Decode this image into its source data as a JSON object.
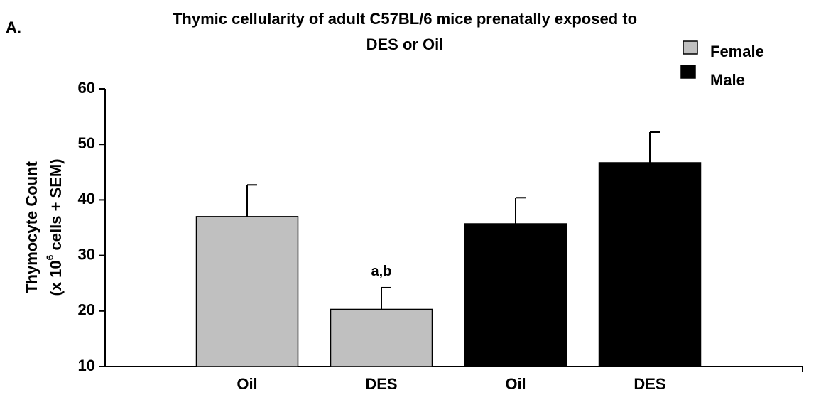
{
  "chart_data": {
    "type": "bar",
    "panel_label": "A.",
    "title": [
      "Thymic cellularity of adult C57BL/6 mice prenatally exposed to",
      "DES or Oil"
    ],
    "y_label": {
      "line1": "Thymocyte Count",
      "before": "(x 10",
      "sup": "6",
      "after": " cells + SEM)"
    },
    "categories": [
      "Oil",
      "DES",
      "Oil",
      "DES"
    ],
    "series": [
      {
        "name": "Female",
        "color": "#c0c0c0",
        "values": [
          37,
          20.3,
          null,
          null
        ],
        "errors": [
          5.7,
          3.9,
          null,
          null
        ]
      },
      {
        "name": "Male",
        "color": "#000000",
        "values": [
          null,
          null,
          35.7,
          46.7
        ],
        "errors": [
          null,
          null,
          4.7,
          5.5
        ]
      }
    ],
    "annotations": [
      {
        "text": "a,b",
        "series": 0,
        "index": 1
      }
    ],
    "ylim": [
      10,
      60
    ],
    "yticks": [
      10,
      20,
      30,
      40,
      50,
      60
    ],
    "grid": false,
    "legend": "top-right"
  }
}
